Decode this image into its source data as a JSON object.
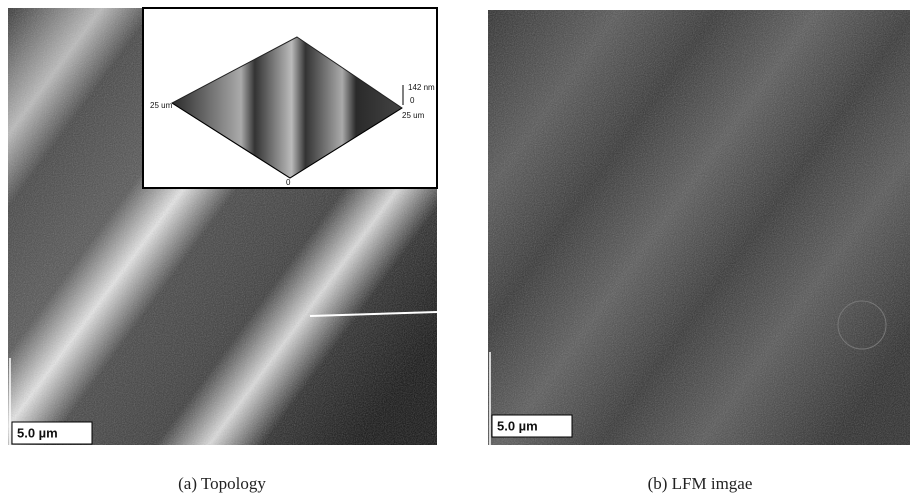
{
  "panels": [
    {
      "caption": "(a) Topology",
      "scale_bar": "5.0 µm",
      "inset": {
        "z_max": "142 nm",
        "z_min": "0",
        "x_left": "25 um",
        "x_right": "25 um",
        "origin": "0"
      }
    },
    {
      "caption": "(b) LFM imgae",
      "scale_bar": "5.0 µm"
    }
  ]
}
